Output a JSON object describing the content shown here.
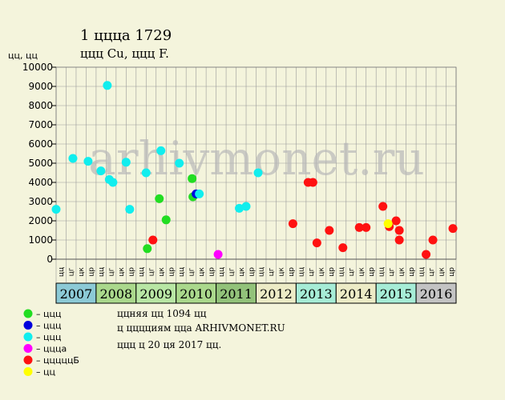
{
  "chart_data": {
    "type": "scatter",
    "title": "1 ццца 1729",
    "subtitle": "ццц Cu, ццц F.",
    "ylabel": "цц, цц",
    "ylim": [
      0,
      10000
    ],
    "yticks": [
      0,
      1000,
      2000,
      3000,
      4000,
      5000,
      6000,
      7000,
      8000,
      9000,
      10000
    ],
    "x_range": [
      2007,
      2017
    ],
    "years": [
      {
        "label": "2007",
        "start": 2007,
        "color": "#8ccad6"
      },
      {
        "label": "2008",
        "start": 2008,
        "color": "#aad88c"
      },
      {
        "label": "2009",
        "start": 2009,
        "color": "#b8e6a4"
      },
      {
        "label": "2010",
        "start": 2010,
        "color": "#aad88c"
      },
      {
        "label": "2011",
        "start": 2011,
        "color": "#92c27a"
      },
      {
        "label": "2012",
        "start": 2012,
        "color": "#ecebc6"
      },
      {
        "label": "2013",
        "start": 2013,
        "color": "#a6ecd6"
      },
      {
        "label": "2014",
        "start": 2014,
        "color": "#ecebc6"
      },
      {
        "label": "2015",
        "start": 2015,
        "color": "#a6ecd6"
      },
      {
        "label": "2016",
        "start": 2016,
        "color": "#c3c3c3"
      }
    ],
    "quarter_labels": [
      "цц",
      "цг",
      "цк",
      "цр"
    ],
    "series": [
      {
        "name": "– ццц",
        "color": "#22dd22",
        "points": [
          {
            "x": 2009.28,
            "y": 550
          },
          {
            "x": 2009.58,
            "y": 3150
          },
          {
            "x": 2009.75,
            "y": 2050
          },
          {
            "x": 2010.4,
            "y": 4200
          },
          {
            "x": 2010.42,
            "y": 3250
          }
        ]
      },
      {
        "name": "– ццц",
        "color": "#0000dd",
        "points": [
          {
            "x": 2010.5,
            "y": 3400
          }
        ]
      },
      {
        "name": "– ццц",
        "color": "#11eeee",
        "points": [
          {
            "x": 2007.0,
            "y": 2600
          },
          {
            "x": 2007.42,
            "y": 5250
          },
          {
            "x": 2007.8,
            "y": 5100
          },
          {
            "x": 2008.12,
            "y": 4600
          },
          {
            "x": 2008.28,
            "y": 9050
          },
          {
            "x": 2008.33,
            "y": 4150
          },
          {
            "x": 2008.42,
            "y": 4000
          },
          {
            "x": 2008.75,
            "y": 5050
          },
          {
            "x": 2008.84,
            "y": 2600
          },
          {
            "x": 2009.25,
            "y": 4500
          },
          {
            "x": 2009.62,
            "y": 5650
          },
          {
            "x": 2010.08,
            "y": 5000
          },
          {
            "x": 2010.58,
            "y": 3400
          },
          {
            "x": 2011.58,
            "y": 2650
          },
          {
            "x": 2011.75,
            "y": 2750
          },
          {
            "x": 2012.05,
            "y": 4500
          }
        ]
      },
      {
        "name": "– ццца",
        "color": "#ff00ff",
        "points": [
          {
            "x": 2011.05,
            "y": 250
          }
        ]
      },
      {
        "name": "– цццццБ",
        "color": "#ff1111",
        "points": [
          {
            "x": 2009.42,
            "y": 1000
          },
          {
            "x": 2012.92,
            "y": 1850
          },
          {
            "x": 2013.3,
            "y": 4000
          },
          {
            "x": 2013.42,
            "y": 4000
          },
          {
            "x": 2013.52,
            "y": 850
          },
          {
            "x": 2013.83,
            "y": 1500
          },
          {
            "x": 2014.17,
            "y": 600
          },
          {
            "x": 2014.58,
            "y": 1650
          },
          {
            "x": 2014.75,
            "y": 1650
          },
          {
            "x": 2015.17,
            "y": 2750
          },
          {
            "x": 2015.33,
            "y": 1700
          },
          {
            "x": 2015.5,
            "y": 2000
          },
          {
            "x": 2015.58,
            "y": 1500
          },
          {
            "x": 2015.58,
            "y": 1000
          },
          {
            "x": 2016.25,
            "y": 250
          },
          {
            "x": 2016.42,
            "y": 1000
          },
          {
            "x": 2016.92,
            "y": 1600
          }
        ]
      },
      {
        "name": "– цц",
        "color": "#ffff00",
        "points": [
          {
            "x": 2015.3,
            "y": 1850
          }
        ]
      }
    ],
    "watermark": "arhivmonet.ru",
    "grid": true
  },
  "footer": [
    "ццняя цц 1094 цц",
    "ц цццциям цца ARHIVMONET.RU",
    "ццц ц 20 ця 2017 цц."
  ]
}
